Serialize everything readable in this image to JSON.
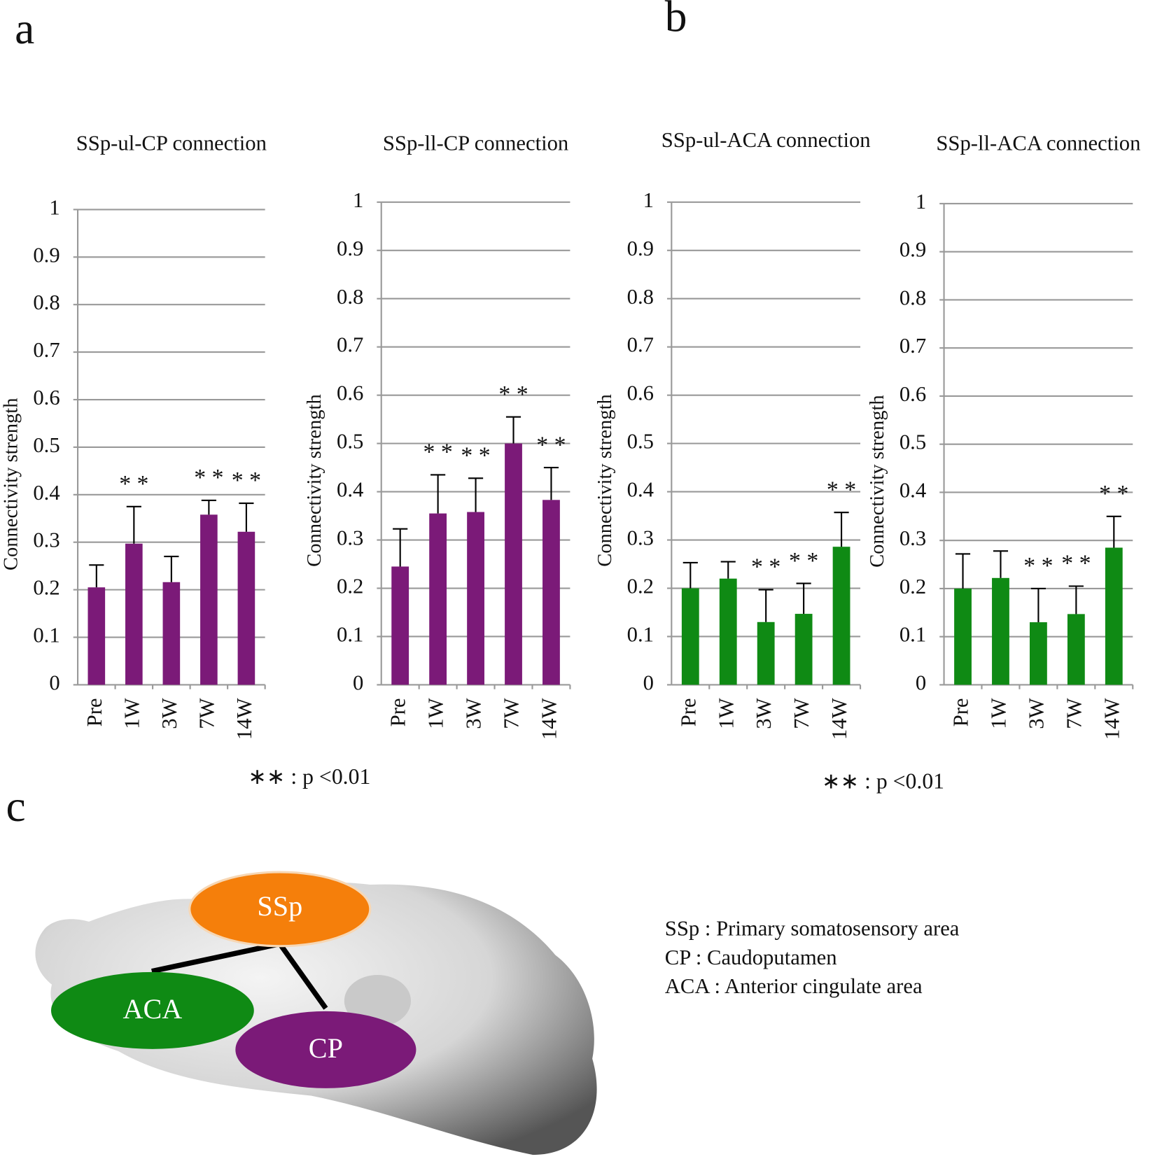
{
  "panels": [
    "a",
    "b",
    "c"
  ],
  "notes": [
    "∗∗ : p <0.01",
    "∗∗ : p <0.01"
  ],
  "chart_data": [
    {
      "type": "bar",
      "title": "SSp-ul-CP connection",
      "y_label": "Connectivity strength",
      "categories": [
        "Pre",
        "1W",
        "3W",
        "7W",
        "14W"
      ],
      "values": [
        0.205,
        0.297,
        0.216,
        0.358,
        0.322
      ],
      "errors": [
        0.047,
        0.078,
        0.054,
        0.03,
        0.06
      ],
      "color": "#7b1a78",
      "ylim": [
        0,
        1
      ],
      "yticks": [
        0,
        0.1,
        0.2,
        0.3,
        0.4,
        0.5,
        0.6,
        0.7,
        0.8,
        0.9,
        1
      ],
      "grid": true,
      "annotations": [
        {
          "category": "1W",
          "text": "* *"
        },
        {
          "category": "7W",
          "text": "* *"
        },
        {
          "category": "14W",
          "text": "* *"
        }
      ]
    },
    {
      "type": "bar",
      "title": "SSp-ll-CP connection",
      "y_label": "Connectivity strength",
      "categories": [
        "Pre",
        "1W",
        "3W",
        "7W",
        "14W"
      ],
      "values": [
        0.245,
        0.355,
        0.358,
        0.5,
        0.383
      ],
      "errors": [
        0.078,
        0.08,
        0.07,
        0.055,
        0.067
      ],
      "color": "#7b1a78",
      "ylim": [
        0,
        1
      ],
      "yticks": [
        0,
        0.1,
        0.2,
        0.3,
        0.4,
        0.5,
        0.6,
        0.7,
        0.8,
        0.9,
        1
      ],
      "grid": true,
      "annotations": [
        {
          "category": "1W",
          "text": "* *"
        },
        {
          "category": "3W",
          "text": "* *"
        },
        {
          "category": "7W",
          "text": "* *"
        },
        {
          "category": "14W",
          "text": "* *"
        }
      ]
    },
    {
      "type": "bar",
      "title": "SSp-ul-ACA connection",
      "y_label": "Connectivity strength",
      "categories": [
        "Pre",
        "1W",
        "3W",
        "7W",
        "14W"
      ],
      "values": [
        0.2,
        0.22,
        0.13,
        0.147,
        0.286
      ],
      "errors": [
        0.053,
        0.035,
        0.067,
        0.063,
        0.071
      ],
      "color": "#0f8a14",
      "ylim": [
        0,
        1
      ],
      "yticks": [
        0,
        0.1,
        0.2,
        0.3,
        0.4,
        0.5,
        0.6,
        0.7,
        0.8,
        0.9,
        1
      ],
      "grid": true,
      "annotations": [
        {
          "category": "3W",
          "text": "* *"
        },
        {
          "category": "7W",
          "text": "* *"
        },
        {
          "category": "14W",
          "text": "* *"
        }
      ]
    },
    {
      "type": "bar",
      "title": "SSp-ll-ACA connection",
      "y_label": "Connectivity strength",
      "categories": [
        "Pre",
        "1W",
        "3W",
        "7W",
        "14W"
      ],
      "values": [
        0.2,
        0.222,
        0.13,
        0.147,
        0.285
      ],
      "errors": [
        0.072,
        0.056,
        0.07,
        0.058,
        0.065
      ],
      "color": "#0f8a14",
      "ylim": [
        0,
        1
      ],
      "yticks": [
        0,
        0.1,
        0.2,
        0.3,
        0.4,
        0.5,
        0.6,
        0.7,
        0.8,
        0.9,
        1
      ],
      "grid": true,
      "annotations": [
        {
          "category": "3W",
          "text": "* *"
        },
        {
          "category": "7W",
          "text": "* *"
        },
        {
          "category": "14W",
          "text": "* *"
        }
      ]
    }
  ],
  "diagram": {
    "regions": [
      "SSp",
      "ACA",
      "CP"
    ],
    "legend": [
      "SSp : Primary somatosensory area",
      "CP : Caudoputamen",
      "ACA : Anterior cingulate area"
    ]
  }
}
